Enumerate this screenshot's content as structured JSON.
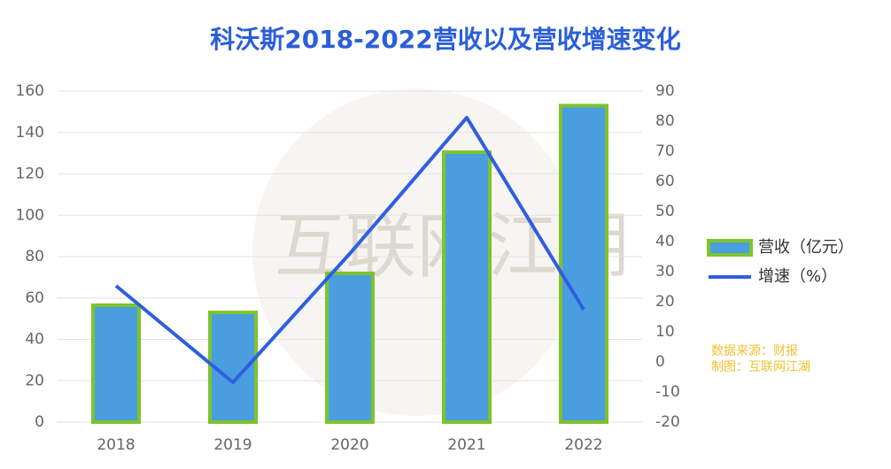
{
  "chart_data": {
    "type": "bar",
    "title": "科沃斯2018-2022营收以及营收增速变化",
    "categories": [
      "2018",
      "2019",
      "2020",
      "2021",
      "2022"
    ],
    "series": [
      {
        "name": "营收（亿元）",
        "type": "bar",
        "color": "#4a9ee0",
        "edge_color": "#7dc42b",
        "values": [
          56.5,
          53,
          71.9,
          130.5,
          153
        ]
      },
      {
        "name": "增速（%）",
        "type": "line",
        "axis": "y2",
        "color": "#2f5fe0",
        "values": [
          25.3,
          -6.8,
          36,
          81.2,
          17.4
        ]
      }
    ],
    "ylim": [
      0,
      160
    ],
    "yticks": [
      0,
      20,
      40,
      60,
      80,
      100,
      120,
      140,
      160
    ],
    "y2lim": [
      -20,
      90
    ],
    "y2ticks": [
      -20,
      -10,
      0,
      10,
      20,
      30,
      40,
      50,
      60,
      70,
      80,
      90
    ],
    "grid": true,
    "legend": "right",
    "annotations": [
      "数据来源：财报",
      "制图：互联网江湖"
    ],
    "watermark": "互联网江湖"
  }
}
